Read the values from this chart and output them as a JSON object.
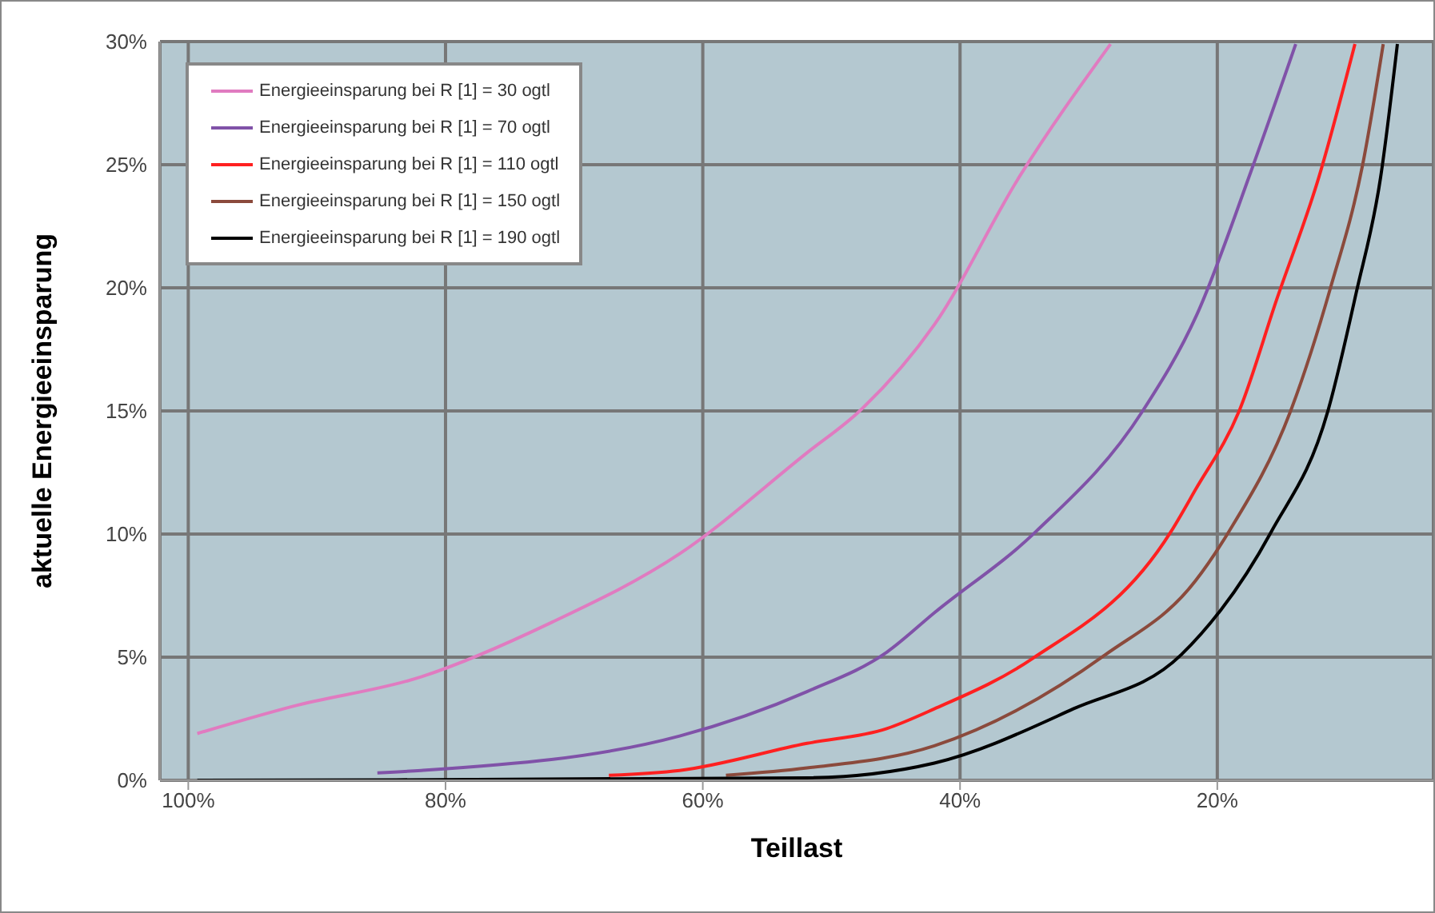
{
  "chart_data": {
    "type": "line",
    "xlabel": "Teillast",
    "ylabel": "aktuelle Energieeinsparung",
    "xlim": [
      102.2,
      3.2
    ],
    "ylim": [
      0,
      30
    ],
    "xticks": [
      {
        "value": 100,
        "label": "100%"
      },
      {
        "value": 80,
        "label": "80%"
      },
      {
        "value": 60,
        "label": "60%"
      },
      {
        "value": 40,
        "label": "40%"
      },
      {
        "value": 20,
        "label": "20%"
      }
    ],
    "yticks": [
      {
        "value": 0,
        "label": "0%"
      },
      {
        "value": 5,
        "label": "5%"
      },
      {
        "value": 10,
        "label": "10%"
      },
      {
        "value": 15,
        "label": "15%"
      },
      {
        "value": 20,
        "label": "20%"
      },
      {
        "value": 25,
        "label": "25%"
      },
      {
        "value": 30,
        "label": "30%"
      }
    ],
    "grid": true,
    "legend": "top left",
    "series": [
      {
        "name": "Energieeinsparung bei R [1] = 30 ogtl",
        "color": "#e07bc0",
        "x": [
          99.3,
          91.9,
          81.9,
          71.8,
          61.8,
          51.9,
          47.8,
          42.0,
          35.4,
          28.3
        ],
        "values": [
          1.9,
          3.0,
          4.2,
          6.4,
          9.2,
          13.3,
          15,
          18.5,
          24.5,
          29.9
        ]
      },
      {
        "name": "Energieeinsparung bei R [1] = 70 ogtl",
        "color": "#8052a8",
        "x": [
          85.3,
          81.9,
          61.8,
          51.9,
          45.7,
          42.0,
          34.1,
          25.8,
          21.6,
          17.4,
          13.9
        ],
        "values": [
          0.3,
          0.4,
          1.8,
          3.6,
          5.2,
          6.8,
          10.1,
          15,
          18.9,
          24.7,
          29.9
        ]
      },
      {
        "name": "Energieeinsparung bei R [1] = 110 ogtl",
        "color": "#ff2020",
        "x": [
          67.3,
          61.8,
          51.9,
          45.7,
          42.0,
          34.5,
          23.6,
          21.7,
          18.3,
          15.4,
          12.1,
          9.3
        ],
        "values": [
          0.2,
          0.4,
          1.5,
          2.1,
          2.9,
          4.9,
          10.1,
          11.8,
          15,
          19.5,
          24.5,
          29.9
        ]
      },
      {
        "name": "Energieeinsparung bei R [1] = 150 ogtl",
        "color": "#8b4a3c",
        "x": [
          58.2,
          51.9,
          42.0,
          28.7,
          21.7,
          19.1,
          14.3,
          11.2,
          8.7,
          7.1
        ],
        "values": [
          0.2,
          0.5,
          1.4,
          5.1,
          8.1,
          10.1,
          15,
          20,
          25,
          29.9
        ]
      },
      {
        "name": "Energieeinsparung bei R [1] = 190 ogtl",
        "color": "#000000",
        "x": [
          99.3,
          51.9,
          42.0,
          31.2,
          22.8,
          15.8,
          11.4,
          9.2,
          7.3,
          6.0
        ],
        "values": [
          0,
          0.1,
          0.7,
          2.9,
          5.1,
          10.1,
          15,
          19.8,
          24.5,
          29.9
        ]
      }
    ]
  }
}
